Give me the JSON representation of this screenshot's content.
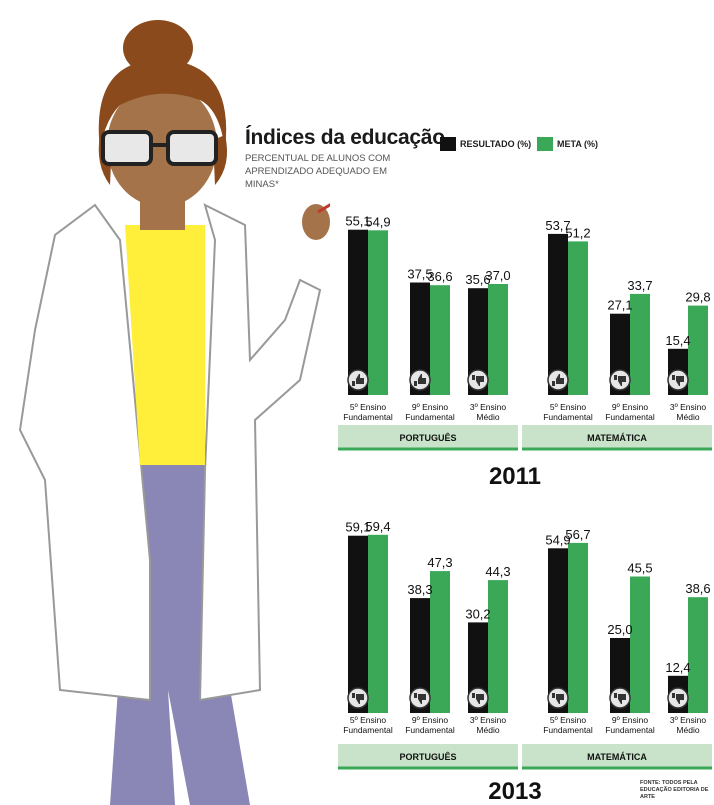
{
  "header": {
    "title": "Índices da educação",
    "subtitle": "PERCENTUAL DE ALUNOS COM APRENDIZADO ADEQUADO EM MINAS*"
  },
  "legend": [
    {
      "label": "RESULTADO (%)",
      "color": "#111111"
    },
    {
      "label": "META (%)",
      "color": "#3aa857"
    }
  ],
  "colors": {
    "resultado": "#111111",
    "meta": "#3aa857",
    "band": "#c8e3c9",
    "icon_bg": "#e6e6e6"
  },
  "source": "FONTE: TODOS PELA EDUCAÇÃO EDITORIA DE ARTE",
  "chart_data": [
    {
      "type": "bar",
      "year": "2011",
      "subjects": [
        "PORTUGUÊS",
        "MATEMÁTICA"
      ],
      "categories": [
        {
          "subject": "PORTUGUÊS",
          "label1": "5º Ensino",
          "label2": "Fundamental",
          "resultado": 55.1,
          "meta": 54.9,
          "resultado_label": "55,1",
          "meta_label": "54,9",
          "icon": "thumbs-up-icon"
        },
        {
          "subject": "PORTUGUÊS",
          "label1": "9º Ensino",
          "label2": "Fundamental",
          "resultado": 37.5,
          "meta": 36.6,
          "resultado_label": "37,5",
          "meta_label": "36,6",
          "icon": "thumbs-up-icon"
        },
        {
          "subject": "PORTUGUÊS",
          "label1": "3º Ensino",
          "label2": "Médio",
          "resultado": 35.6,
          "meta": 37.0,
          "resultado_label": "35,6",
          "meta_label": "37,0",
          "icon": "thumbs-down-icon"
        },
        {
          "subject": "MATEMÁTICA",
          "label1": "5º Ensino",
          "label2": "Fundamental",
          "resultado": 53.7,
          "meta": 51.2,
          "resultado_label": "53,7",
          "meta_label": "51,2",
          "icon": "thumbs-up-icon"
        },
        {
          "subject": "MATEMÁTICA",
          "label1": "9º Ensino",
          "label2": "Fundamental",
          "resultado": 27.1,
          "meta": 33.7,
          "resultado_label": "27,1",
          "meta_label": "33,7",
          "icon": "thumbs-down-icon"
        },
        {
          "subject": "MATEMÁTICA",
          "label1": "3º Ensino",
          "label2": "Médio",
          "resultado": 15.4,
          "meta": 29.8,
          "resultado_label": "15,4",
          "meta_label": "29,8",
          "icon": "thumbs-down-icon"
        }
      ]
    },
    {
      "type": "bar",
      "year": "2013",
      "subjects": [
        "PORTUGUÊS",
        "MATEMÁTICA"
      ],
      "categories": [
        {
          "subject": "PORTUGUÊS",
          "label1": "5º Ensino",
          "label2": "Fundamental",
          "resultado": 59.1,
          "meta": 59.4,
          "resultado_label": "59,1",
          "meta_label": "59,4",
          "icon": "thumbs-down-icon"
        },
        {
          "subject": "PORTUGUÊS",
          "label1": "9º Ensino",
          "label2": "Fundamental",
          "resultado": 38.3,
          "meta": 47.3,
          "resultado_label": "38,3",
          "meta_label": "47,3",
          "icon": "thumbs-down-icon"
        },
        {
          "subject": "PORTUGUÊS",
          "label1": "3º Ensino",
          "label2": "Médio",
          "resultado": 30.2,
          "meta": 44.3,
          "resultado_label": "30,2",
          "meta_label": "44,3",
          "icon": "thumbs-down-icon"
        },
        {
          "subject": "MATEMÁTICA",
          "label1": "5º Ensino",
          "label2": "Fundamental",
          "resultado": 54.9,
          "meta": 56.7,
          "resultado_label": "54,9",
          "meta_label": "56,7",
          "icon": "thumbs-down-icon"
        },
        {
          "subject": "MATEMÁTICA",
          "label1": "9º Ensino",
          "label2": "Fundamental",
          "resultado": 25.0,
          "meta": 45.5,
          "resultado_label": "25,0",
          "meta_label": "45,5",
          "icon": "thumbs-down-icon"
        },
        {
          "subject": "MATEMÁTICA",
          "label1": "3º Ensino",
          "label2": "Médio",
          "resultado": 12.4,
          "meta": 38.6,
          "resultado_label": "12,4",
          "meta_label": "38,6",
          "icon": "thumbs-down-icon"
        }
      ]
    }
  ]
}
